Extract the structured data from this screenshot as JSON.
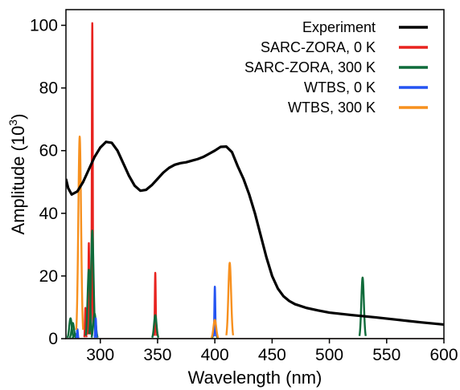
{
  "chart_data": {
    "type": "line",
    "title": "",
    "xlabel": "Wavelength (nm)",
    "ylabel": "Amplitude (10",
    "ylabel_exponent": "3",
    "ylabel_suffix": ")",
    "xlim": [
      270,
      600
    ],
    "ylim": [
      0,
      105
    ],
    "x_ticks": [
      300,
      350,
      400,
      450,
      500,
      550,
      600
    ],
    "y_ticks": [
      0,
      20,
      40,
      60,
      80,
      100
    ],
    "grid": false,
    "legend_position": "top-right",
    "series": [
      {
        "name": "Experiment",
        "color": "#000000",
        "style": "curve",
        "points": [
          [
            270,
            51
          ],
          [
            272,
            48
          ],
          [
            275,
            46
          ],
          [
            280,
            47
          ],
          [
            285,
            50
          ],
          [
            290,
            54
          ],
          [
            295,
            58
          ],
          [
            300,
            61
          ],
          [
            305,
            62.8
          ],
          [
            310,
            62.5
          ],
          [
            315,
            60
          ],
          [
            320,
            56
          ],
          [
            325,
            52
          ],
          [
            330,
            48.8
          ],
          [
            335,
            47.2
          ],
          [
            340,
            47.5
          ],
          [
            345,
            49
          ],
          [
            350,
            51
          ],
          [
            355,
            53
          ],
          [
            360,
            54.5
          ],
          [
            365,
            55.5
          ],
          [
            370,
            56
          ],
          [
            375,
            56.3
          ],
          [
            380,
            56.8
          ],
          [
            385,
            57.3
          ],
          [
            390,
            58
          ],
          [
            395,
            59
          ],
          [
            400,
            60
          ],
          [
            405,
            61.2
          ],
          [
            410,
            61.3
          ],
          [
            415,
            59.5
          ],
          [
            420,
            55
          ],
          [
            425,
            51
          ],
          [
            430,
            46
          ],
          [
            435,
            40
          ],
          [
            440,
            33
          ],
          [
            445,
            26
          ],
          [
            450,
            20
          ],
          [
            455,
            16
          ],
          [
            460,
            13.5
          ],
          [
            465,
            12
          ],
          [
            470,
            11
          ],
          [
            480,
            9.8
          ],
          [
            490,
            9
          ],
          [
            500,
            8.3
          ],
          [
            520,
            7.5
          ],
          [
            540,
            6.8
          ],
          [
            560,
            6
          ],
          [
            580,
            5.2
          ],
          [
            600,
            4.5
          ]
        ]
      },
      {
        "name": "SARC-ZORA, 0 K",
        "color": "#e8231f",
        "style": "sticks",
        "width": 0.4,
        "lines": [
          [
            287,
            9.8
          ],
          [
            290,
            30.5
          ],
          [
            293,
            100.7
          ],
          [
            348,
            21
          ]
        ]
      },
      {
        "name": "SARC-ZORA, 300 K",
        "color": "#0f6b3a",
        "style": "sticks",
        "width": 1.1,
        "lines": [
          [
            274,
            6.5
          ],
          [
            276,
            5
          ],
          [
            278,
            1.5
          ],
          [
            290,
            22
          ],
          [
            293,
            34.5
          ],
          [
            295,
            8
          ],
          [
            348,
            7.5
          ],
          [
            400,
            3
          ],
          [
            529,
            19.5
          ]
        ]
      },
      {
        "name": "WTBS, 0 K",
        "color": "#2454f2",
        "style": "sticks",
        "width": 0.4,
        "lines": [
          [
            280,
            3
          ],
          [
            296,
            6.5
          ],
          [
            400,
            16.6
          ]
        ]
      },
      {
        "name": "WTBS, 300 K",
        "color": "#f7901e",
        "style": "sticks",
        "width": 1.2,
        "lines": [
          [
            282,
            64.5
          ],
          [
            400,
            6
          ],
          [
            413,
            24.2
          ]
        ]
      }
    ]
  }
}
